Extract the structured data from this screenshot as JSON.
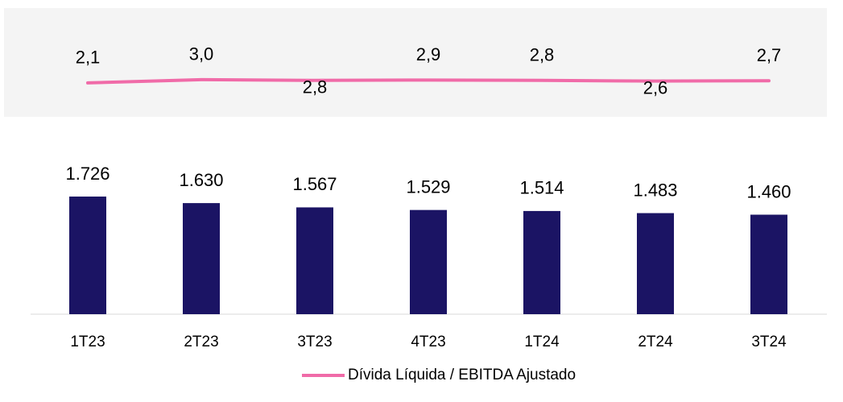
{
  "chart_data": {
    "type": "bar",
    "categories": [
      "1T23",
      "2T23",
      "3T23",
      "4T23",
      "1T24",
      "2T24",
      "3T24"
    ],
    "series": [
      {
        "type": "bar",
        "color": "#1b1464",
        "values": [
          1726,
          1630,
          1567,
          1529,
          1514,
          1483,
          1460
        ],
        "value_labels": [
          "1.726",
          "1.630",
          "1.567",
          "1.529",
          "1.514",
          "1.483",
          "1.460"
        ]
      },
      {
        "type": "line",
        "name": "Dívida Líquida / EBITDA Ajustado",
        "color": "#f06ba8",
        "axis": "y2",
        "values": [
          2.1,
          3.0,
          2.8,
          2.9,
          2.8,
          2.6,
          2.7
        ],
        "value_labels": [
          "2,1",
          "3,0",
          "2,8",
          "2,9",
          "2,8",
          "2,6",
          "2,7"
        ]
      }
    ],
    "ylim": [
      0,
      2500
    ],
    "y2lim": [
      -31,
      14
    ],
    "legend": "bottom"
  }
}
